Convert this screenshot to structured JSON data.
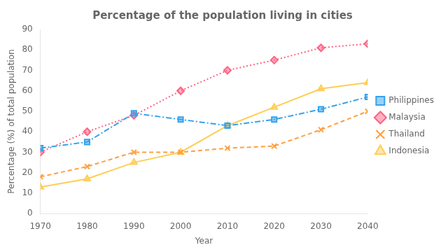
{
  "chart_data": {
    "type": "line",
    "title": "Percentage of the population living in cities",
    "xlabel": "Year",
    "ylabel": "Percentage (%) of total population",
    "x": [
      1970,
      1980,
      1990,
      2000,
      2010,
      2020,
      2030,
      2040
    ],
    "series": [
      {
        "name": "Philippines",
        "values": [
          32,
          35,
          49,
          46,
          43,
          46,
          51,
          57
        ],
        "marker": "square",
        "line_style": "dashdot"
      },
      {
        "name": "Malaysia",
        "values": [
          30,
          40,
          48,
          60,
          70,
          75,
          81,
          83
        ],
        "marker": "diamond",
        "line_style": "dotted"
      },
      {
        "name": "Thailand",
        "values": [
          18,
          23,
          30,
          30,
          32,
          33,
          41,
          50
        ],
        "marker": "x",
        "line_style": "dashed"
      },
      {
        "name": "Indonesia",
        "values": [
          13,
          17,
          25,
          30,
          43,
          52,
          61,
          64
        ],
        "marker": "triangle",
        "line_style": "solid"
      }
    ],
    "xlim": [
      1970,
      2040
    ],
    "xticks": [
      1970,
      1980,
      1990,
      2000,
      2010,
      2020,
      2030,
      2040
    ],
    "ylim": [
      0,
      90
    ],
    "yticks": [
      0,
      10,
      20,
      30,
      40,
      50,
      60,
      70,
      80,
      90
    ],
    "grid": false,
    "legend": "right"
  }
}
